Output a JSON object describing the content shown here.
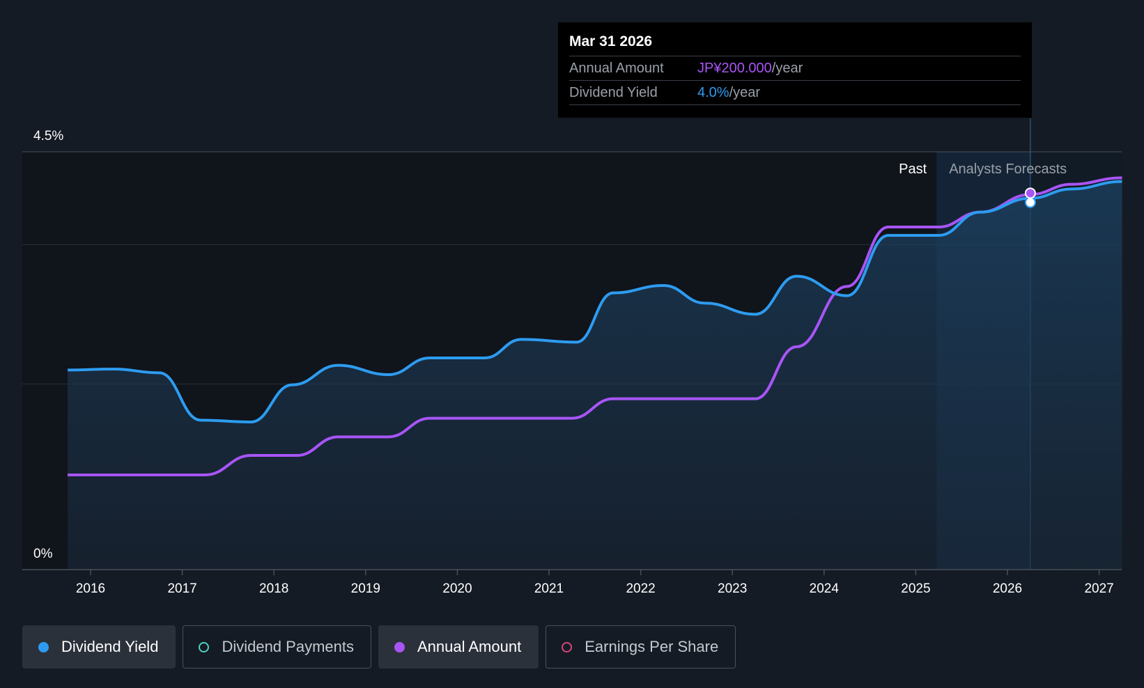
{
  "chart_data": {
    "type": "line",
    "x_axis": {
      "ticks": [
        "2016",
        "2017",
        "2018",
        "2019",
        "2020",
        "2021",
        "2022",
        "2023",
        "2024",
        "2025",
        "2026",
        "2027"
      ],
      "range": [
        2015.5,
        2027.25
      ]
    },
    "y_axis": {
      "ticks": [
        "0%",
        "4.5%"
      ],
      "range": [
        0,
        4.5
      ]
    },
    "regions": {
      "past_label": "Past",
      "forecast_label": "Analysts Forecasts",
      "forecast_start": 2025.5,
      "cursor_date": 2026.25
    },
    "series": [
      {
        "name": "Dividend Yield",
        "color": "#2d9cf0",
        "points": [
          [
            2015.75,
            2.15
          ],
          [
            2016.25,
            2.16
          ],
          [
            2016.75,
            2.12
          ],
          [
            2017.2,
            1.61
          ],
          [
            2017.75,
            1.59
          ],
          [
            2018.2,
            1.99
          ],
          [
            2018.7,
            2.2
          ],
          [
            2019.25,
            2.1
          ],
          [
            2019.7,
            2.28
          ],
          [
            2020.3,
            2.28
          ],
          [
            2020.7,
            2.48
          ],
          [
            2021.3,
            2.45
          ],
          [
            2021.7,
            2.98
          ],
          [
            2022.25,
            3.06
          ],
          [
            2022.7,
            2.87
          ],
          [
            2023.25,
            2.75
          ],
          [
            2023.7,
            3.16
          ],
          [
            2024.25,
            2.95
          ],
          [
            2024.7,
            3.6
          ],
          [
            2025.25,
            3.6
          ],
          [
            2025.7,
            3.85
          ],
          [
            2026.25,
            4.0
          ],
          [
            2026.7,
            4.1
          ],
          [
            2027.25,
            4.18
          ]
        ]
      },
      {
        "name": "Annual Amount",
        "color": "#a855f7",
        "points": [
          [
            2015.75,
            1.02
          ],
          [
            2017.25,
            1.02
          ],
          [
            2017.75,
            1.23
          ],
          [
            2018.25,
            1.23
          ],
          [
            2018.7,
            1.43
          ],
          [
            2019.25,
            1.43
          ],
          [
            2019.7,
            1.63
          ],
          [
            2021.25,
            1.63
          ],
          [
            2021.7,
            1.84
          ],
          [
            2023.25,
            1.84
          ],
          [
            2023.7,
            2.4
          ],
          [
            2024.25,
            3.05
          ],
          [
            2024.7,
            3.69
          ],
          [
            2025.25,
            3.69
          ],
          [
            2025.7,
            3.85
          ],
          [
            2026.25,
            4.04
          ],
          [
            2026.7,
            4.15
          ],
          [
            2027.25,
            4.22
          ]
        ]
      }
    ]
  },
  "tooltip": {
    "date": "Mar 31 2026",
    "rows": [
      {
        "key": "Annual Amount",
        "value": "JP¥200.000",
        "unit": "/year",
        "color": "#a855f7"
      },
      {
        "key": "Dividend Yield",
        "value": "4.0%",
        "unit": "/year",
        "color": "#2d9cf0"
      }
    ]
  },
  "legend": [
    {
      "label": "Dividend Yield",
      "color": "#2d9cf0",
      "active": true
    },
    {
      "label": "Dividend Payments",
      "color": "#4fd1c5",
      "active": false
    },
    {
      "label": "Annual Amount",
      "color": "#a855f7",
      "active": true
    },
    {
      "label": "Earnings Per Share",
      "color": "#d6457a",
      "active": false
    }
  ]
}
